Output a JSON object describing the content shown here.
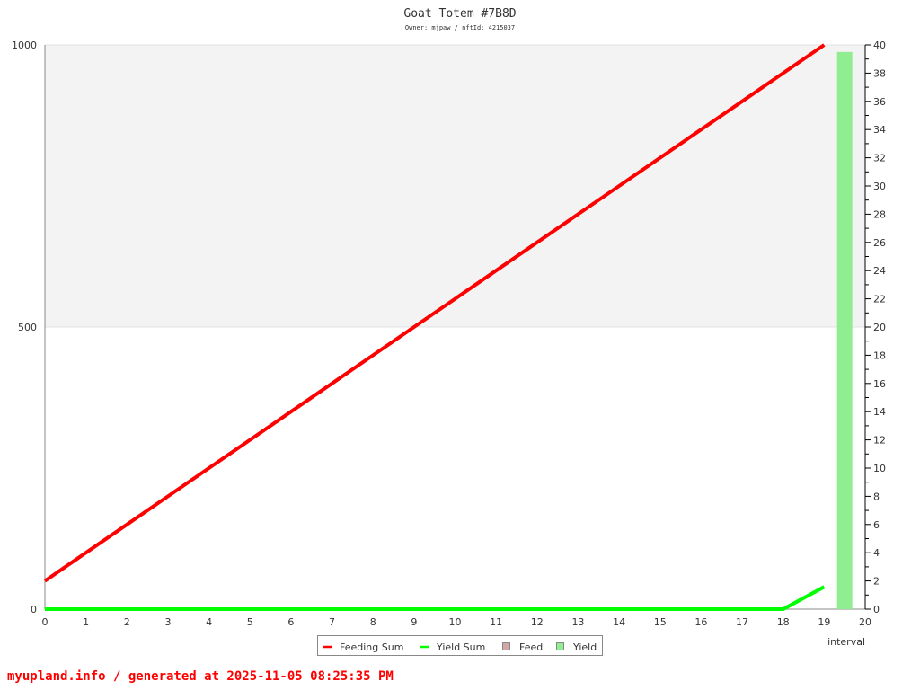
{
  "chart_data": {
    "type": "line",
    "title": "Goat Totem #7B8D",
    "subtitle": "Owner: mjpaw / nftId: 4215037",
    "xlabel": "interval",
    "xlim": [
      0,
      20
    ],
    "x_ticks": [
      0,
      1,
      2,
      3,
      4,
      5,
      6,
      7,
      8,
      9,
      10,
      11,
      12,
      13,
      14,
      15,
      16,
      17,
      18,
      19,
      20
    ],
    "ylim_left": [
      0,
      1000
    ],
    "y_ticks_left": [
      0,
      500,
      1000
    ],
    "ylim_right": [
      0,
      40
    ],
    "y_ticks_right": [
      0,
      2,
      4,
      6,
      8,
      10,
      12,
      14,
      16,
      18,
      20,
      22,
      24,
      26,
      28,
      30,
      32,
      34,
      36,
      38,
      40
    ],
    "grid": true,
    "legend_placement": "bottom",
    "series": [
      {
        "name": "Feeding Sum",
        "kind": "line",
        "axis": "left",
        "color": "#ff0000",
        "x": [
          0,
          1,
          2,
          3,
          4,
          5,
          6,
          7,
          8,
          9,
          10,
          11,
          12,
          13,
          14,
          15,
          16,
          17,
          18,
          19
        ],
        "values": [
          50,
          100,
          150,
          200,
          250,
          300,
          350,
          400,
          450,
          500,
          550,
          600,
          650,
          700,
          750,
          800,
          850,
          900,
          950,
          1000
        ]
      },
      {
        "name": "Yield Sum",
        "kind": "line",
        "axis": "left",
        "color": "#00ff00",
        "x": [
          0,
          1,
          2,
          3,
          4,
          5,
          6,
          7,
          8,
          9,
          10,
          11,
          12,
          13,
          14,
          15,
          16,
          17,
          18,
          19
        ],
        "values": [
          0,
          0,
          0,
          0,
          0,
          0,
          0,
          0,
          0,
          0,
          0,
          0,
          0,
          0,
          0,
          0,
          0,
          0,
          0,
          39.5
        ]
      },
      {
        "name": "Feed",
        "kind": "bar",
        "axis": "right",
        "color": "#d4a5a5",
        "x": [],
        "values": []
      },
      {
        "name": "Yield",
        "kind": "bar",
        "axis": "right",
        "color": "#90ee90",
        "x": [
          19.5
        ],
        "values": [
          39.5
        ]
      }
    ]
  },
  "footer": "myupland.info / generated at 2025-11-05 08:25:35 PM"
}
